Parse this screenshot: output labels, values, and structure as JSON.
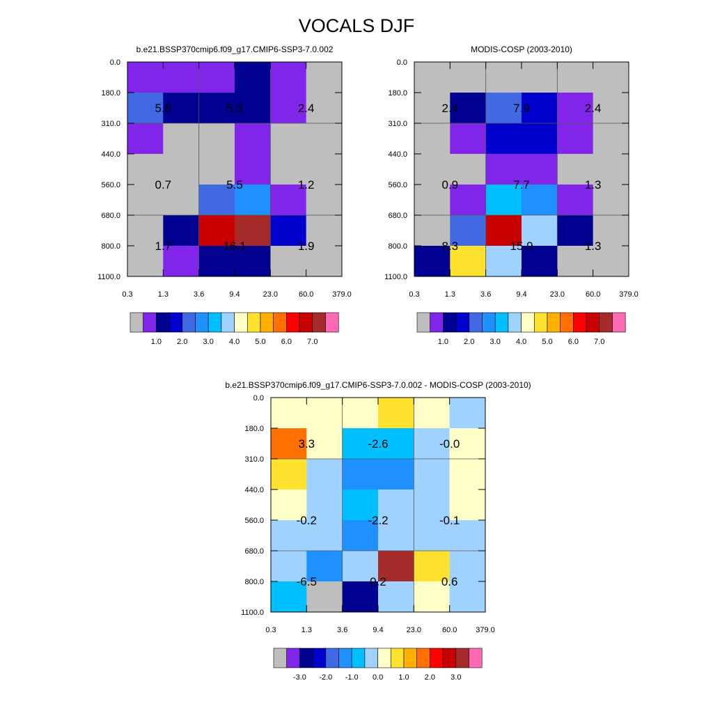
{
  "figure": {
    "title": "VOCALS DJF"
  },
  "palette": [
    "#bebebe",
    "#8225eb",
    "#000091",
    "#0000cd",
    "#4169e1",
    "#1e90ff",
    "#00bfff",
    "#a0d2ff",
    "#ffffc8",
    "#ffe130",
    "#ffb000",
    "#ff7000",
    "#ff0000",
    "#c80000",
    "#a52a2a",
    "#ff69b4"
  ],
  "chart_data": [
    {
      "type": "heatmap",
      "title": "b.e21.BSSP370cmip6.f09_g17.CMIP6-SSP3-7.0.002",
      "x_tick_labels": [
        "0.3",
        "1.3",
        "3.6",
        "9.4",
        "23.0",
        "60.0",
        "379.0"
      ],
      "y_tick_labels": [
        "0.0",
        "180.0",
        "310.0",
        "440.0",
        "560.0",
        "680.0",
        "800.0",
        "1100.0"
      ],
      "cell_color_index": [
        [
          1,
          1,
          1,
          2,
          1,
          0
        ],
        [
          4,
          2,
          2,
          2,
          1,
          0
        ],
        [
          1,
          0,
          0,
          1,
          0,
          0
        ],
        [
          0,
          0,
          0,
          1,
          0,
          0
        ],
        [
          0,
          0,
          4,
          5,
          1,
          0
        ],
        [
          0,
          2,
          13,
          14,
          3,
          0
        ],
        [
          0,
          1,
          2,
          2,
          0,
          0
        ]
      ],
      "box_labels": [
        [
          "5.8",
          "5.3",
          "2.4"
        ],
        [
          "0.7",
          "5.5",
          "1.2"
        ],
        [
          "1.7",
          "16.1",
          "1.9"
        ]
      ],
      "colorbar_labels": [
        "1.0",
        "2.0",
        "3.0",
        "4.0",
        "5.0",
        "6.0",
        "7.0"
      ]
    },
    {
      "type": "heatmap",
      "title": "MODIS-COSP (2003-2010)",
      "x_tick_labels": [
        "0.3",
        "1.3",
        "3.6",
        "9.4",
        "23.0",
        "60.0",
        "379.0"
      ],
      "y_tick_labels": [
        "0.0",
        "180.0",
        "310.0",
        "440.0",
        "560.0",
        "680.0",
        "800.0",
        "1100.0"
      ],
      "cell_color_index": [
        [
          0,
          0,
          0,
          0,
          0,
          0
        ],
        [
          0,
          2,
          4,
          3,
          1,
          0
        ],
        [
          0,
          1,
          3,
          3,
          1,
          0
        ],
        [
          0,
          0,
          1,
          1,
          0,
          0
        ],
        [
          0,
          1,
          6,
          5,
          1,
          0
        ],
        [
          0,
          4,
          13,
          7,
          2,
          0
        ],
        [
          2,
          9,
          7,
          2,
          0,
          0
        ]
      ],
      "box_labels": [
        [
          "2.4",
          "7.9",
          "2.4"
        ],
        [
          "0.9",
          "7.7",
          "1.3"
        ],
        [
          "8.3",
          "15.9",
          "1.3"
        ]
      ],
      "colorbar_labels": [
        "1.0",
        "2.0",
        "3.0",
        "4.0",
        "5.0",
        "6.0",
        "7.0"
      ]
    },
    {
      "type": "heatmap",
      "title": "b.e21.BSSP370cmip6.f09_g17.CMIP6-SSP3-7.0.002 - MODIS-COSP (2003-2010)",
      "x_tick_labels": [
        "0.3",
        "1.3",
        "3.6",
        "9.4",
        "23.0",
        "60.0",
        "379.0"
      ],
      "y_tick_labels": [
        "0.0",
        "180.0",
        "310.0",
        "440.0",
        "560.0",
        "680.0",
        "800.0",
        "1100.0"
      ],
      "cell_color_index": [
        [
          8,
          8,
          8,
          9,
          8,
          7
        ],
        [
          11,
          8,
          6,
          6,
          7,
          8
        ],
        [
          9,
          7,
          5,
          5,
          7,
          8
        ],
        [
          8,
          7,
          6,
          7,
          7,
          8
        ],
        [
          7,
          7,
          5,
          7,
          7,
          7
        ],
        [
          7,
          5,
          7,
          14,
          9,
          7
        ],
        [
          6,
          0,
          2,
          7,
          8,
          7
        ]
      ],
      "box_labels": [
        [
          "3.3",
          "-2.6",
          "-0.0"
        ],
        [
          "-0.2",
          "-2.2",
          "-0.1"
        ],
        [
          "-6.5",
          "0.2",
          "0.6"
        ]
      ],
      "colorbar_labels": [
        "-3.0",
        "-2.0",
        "-1.0",
        "0.0",
        "1.0",
        "2.0",
        "3.0"
      ]
    }
  ]
}
